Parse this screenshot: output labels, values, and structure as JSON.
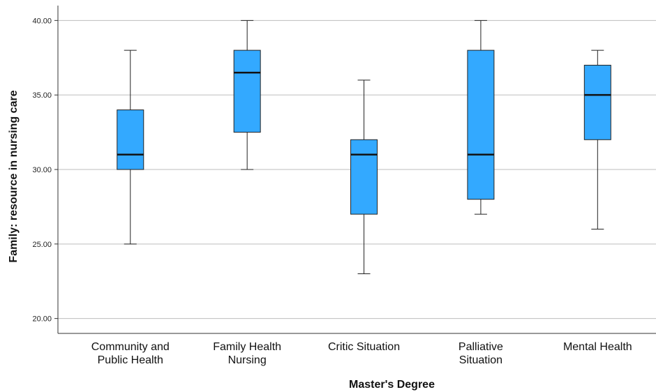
{
  "chart_data": {
    "type": "boxplot",
    "title": "",
    "xlabel": "Master's Degree",
    "ylabel": "Family: resource in nursing care",
    "ylim": [
      19,
      41
    ],
    "yticks": [
      "20.00",
      "25.00",
      "30.00",
      "35.00",
      "40.00"
    ],
    "ytick_values": [
      20,
      25,
      30,
      35,
      40
    ],
    "grid": "horizontal",
    "box_color": "#33a9ff",
    "categories": [
      {
        "label_lines": [
          "Community and",
          "Public Health"
        ],
        "min": 25,
        "q1": 30,
        "median": 31,
        "q3": 34,
        "max": 38
      },
      {
        "label_lines": [
          "Family Health",
          "Nursing"
        ],
        "min": 30,
        "q1": 32.5,
        "median": 36.5,
        "q3": 38,
        "max": 40
      },
      {
        "label_lines": [
          "Critic Situation"
        ],
        "min": 23,
        "q1": 27,
        "median": 31,
        "q3": 32,
        "max": 36
      },
      {
        "label_lines": [
          "Palliative",
          "Situation"
        ],
        "min": 27,
        "q1": 28,
        "median": 31,
        "q3": 38,
        "max": 40
      },
      {
        "label_lines": [
          "Mental Health"
        ],
        "min": 26,
        "q1": 32,
        "median": 35,
        "q3": 37,
        "max": 38
      }
    ]
  }
}
